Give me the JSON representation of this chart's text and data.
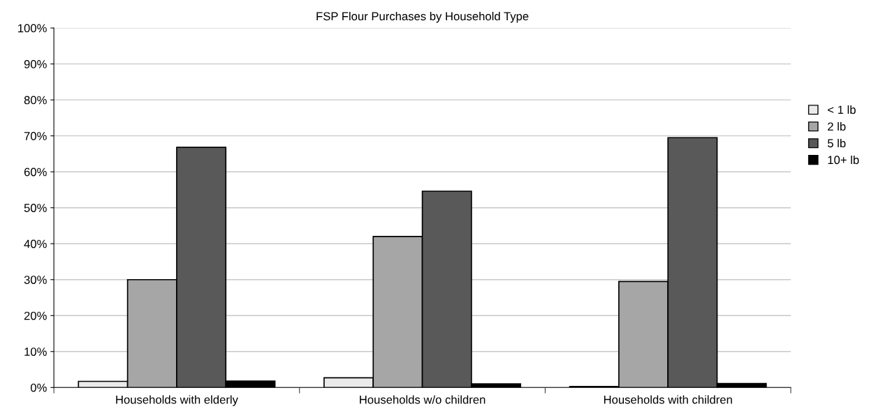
{
  "chart_data": {
    "type": "bar",
    "title": "FSP Flour Purchases by Household Type",
    "categories": [
      "Households with elderly",
      "Households w/o children",
      "Households with children"
    ],
    "series": [
      {
        "name": "< 1 lb",
        "color": "#eaeaea",
        "values": [
          1.7,
          2.7,
          0.3
        ]
      },
      {
        "name": "2 lb",
        "color": "#a6a6a6",
        "values": [
          30,
          42,
          29.5
        ]
      },
      {
        "name": "5 lb",
        "color": "#595959",
        "values": [
          66.8,
          54.6,
          69.5
        ]
      },
      {
        "name": "10+ lb",
        "color": "#000000",
        "values": [
          1.8,
          1,
          1.1
        ]
      }
    ],
    "ylim": [
      0,
      100
    ],
    "yticks": [
      {
        "value": 0,
        "label": "0%"
      },
      {
        "value": 10,
        "label": "10%"
      },
      {
        "value": 20,
        "label": "20%"
      },
      {
        "value": 30,
        "label": "30%"
      },
      {
        "value": 40,
        "label": "40%"
      },
      {
        "value": 50,
        "label": "50%"
      },
      {
        "value": 60,
        "label": "60%"
      },
      {
        "value": 70,
        "label": "70%"
      },
      {
        "value": 80,
        "label": "80%"
      },
      {
        "value": 90,
        "label": "90%"
      },
      {
        "value": 100,
        "label": "100%"
      }
    ],
    "grid": "y",
    "legend": "right"
  }
}
